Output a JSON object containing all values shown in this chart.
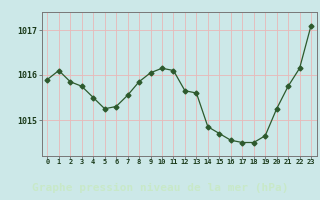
{
  "x": [
    0,
    1,
    2,
    3,
    4,
    5,
    6,
    7,
    8,
    9,
    10,
    11,
    12,
    13,
    14,
    15,
    16,
    17,
    18,
    19,
    20,
    21,
    22,
    23
  ],
  "y": [
    1015.9,
    1016.1,
    1015.85,
    1015.75,
    1015.5,
    1015.25,
    1015.3,
    1015.55,
    1015.85,
    1016.05,
    1016.15,
    1016.1,
    1015.65,
    1015.6,
    1014.85,
    1014.7,
    1014.55,
    1014.5,
    1014.5,
    1014.65,
    1015.25,
    1015.75,
    1016.15,
    1017.1
  ],
  "line_color": "#2d5a2d",
  "marker": "D",
  "marker_size": 2.5,
  "bg_color": "#cce8e8",
  "grid_color": "#e8b8b8",
  "title": "Graphe pression niveau de la mer (hPa)",
  "title_fontsize": 8,
  "title_color": "#1a3a1a",
  "tick_label_color": "#1a3a1a",
  "ylabel_ticks": [
    1015,
    1016,
    1017
  ],
  "ylim": [
    1014.2,
    1017.4
  ],
  "xlim": [
    -0.5,
    23.5
  ],
  "bottom_bar_color": "#3a6b3a",
  "bottom_text_color": "#c8e8c8"
}
